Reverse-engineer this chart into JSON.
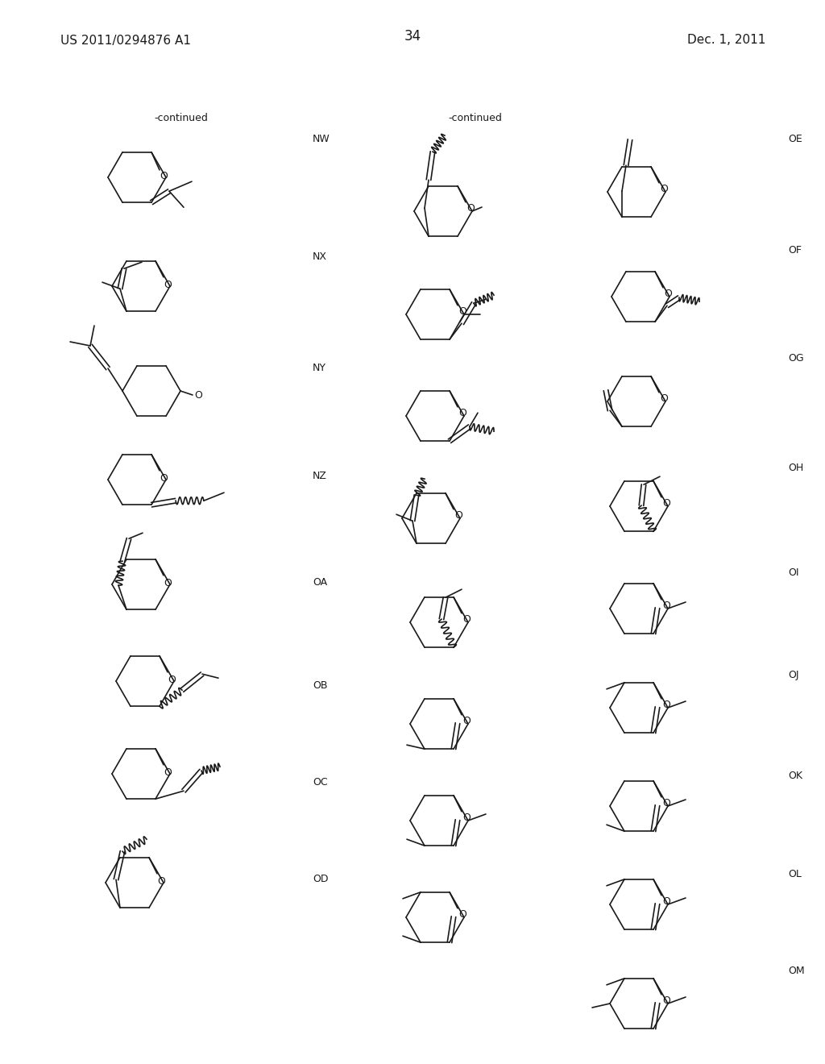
{
  "page_number": "34",
  "patent_number": "US 2011/0294876 A1",
  "date": "Dec. 1, 2011",
  "background_color": "#ffffff",
  "text_color": "#1a1a1a",
  "line_color": "#1a1a1a",
  "continued_left": "-continued",
  "continued_right": "-continued",
  "figsize": [
    10.24,
    13.2
  ],
  "dpi": 100
}
